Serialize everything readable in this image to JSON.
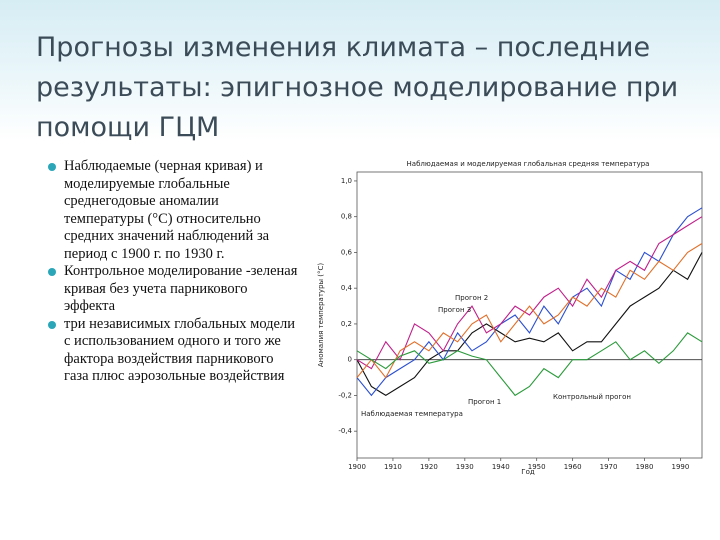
{
  "slide": {
    "title": "Прогнозы изменения климата – последние результаты: эпигнозное моделирование при помощи ГЦМ",
    "bullets": [
      "Наблюдаемые (черная кривая) и моделируемые глобальные среднегодовые аномалии температуры (°C) относительно средних значений наблюдений за период с 1900 г. по 1930 г.",
      "Контрольное моделирование -зеленая кривая  без учета парникового эффекта",
      "три независимых глобальных модели с использованием одного и того же фактора воздействия парникового газа плюс аэрозольные воздействия"
    ]
  },
  "chart_data": {
    "type": "line",
    "title": "Наблюдаемая и моделируемая глобальная средняя температура",
    "x_label": "Год",
    "y_label": "Аномалия температуры (°C)",
    "x": [
      1900,
      1904,
      1908,
      1912,
      1916,
      1920,
      1924,
      1928,
      1932,
      1936,
      1940,
      1944,
      1948,
      1952,
      1956,
      1960,
      1964,
      1968,
      1972,
      1976,
      1980,
      1984,
      1988,
      1992,
      1996
    ],
    "series": [
      {
        "name": "Наблюдаемая температура",
        "color": "#111111",
        "values": [
          0.0,
          -0.15,
          -0.2,
          -0.15,
          -0.1,
          0.0,
          0.05,
          0.05,
          0.15,
          0.2,
          0.15,
          0.1,
          0.12,
          0.1,
          0.15,
          0.05,
          0.1,
          0.1,
          0.2,
          0.3,
          0.35,
          0.4,
          0.5,
          0.45,
          0.6
        ]
      },
      {
        "name": "Прогон 1",
        "color": "#2b4fd0",
        "values": [
          -0.1,
          -0.2,
          -0.1,
          -0.05,
          0.0,
          0.1,
          0.0,
          0.15,
          0.05,
          0.1,
          0.2,
          0.25,
          0.15,
          0.3,
          0.2,
          0.35,
          0.4,
          0.3,
          0.5,
          0.45,
          0.6,
          0.55,
          0.7,
          0.8,
          0.85
        ]
      },
      {
        "name": "Прогон 2",
        "color": "#c0208a",
        "values": [
          0.0,
          -0.05,
          0.1,
          0.0,
          0.2,
          0.15,
          0.05,
          0.2,
          0.3,
          0.15,
          0.2,
          0.3,
          0.25,
          0.35,
          0.4,
          0.3,
          0.45,
          0.35,
          0.5,
          0.55,
          0.5,
          0.65,
          0.7,
          0.75,
          0.8
        ]
      },
      {
        "name": "Прогон 3",
        "color": "#e0702a",
        "values": [
          -0.1,
          0.0,
          -0.1,
          0.05,
          0.1,
          0.05,
          0.15,
          0.1,
          0.2,
          0.25,
          0.1,
          0.2,
          0.3,
          0.2,
          0.25,
          0.35,
          0.3,
          0.4,
          0.35,
          0.5,
          0.45,
          0.55,
          0.5,
          0.6,
          0.65
        ]
      },
      {
        "name": "Контрольный прогон",
        "color": "#2a9a3a",
        "values": [
          0.05,
          0.0,
          -0.05,
          0.02,
          0.05,
          -0.02,
          0.0,
          0.05,
          0.02,
          0.0,
          -0.1,
          -0.2,
          -0.15,
          -0.05,
          -0.1,
          0.0,
          0.0,
          0.05,
          0.1,
          0.0,
          0.05,
          -0.02,
          0.05,
          0.15,
          0.1
        ]
      }
    ],
    "xlim": [
      1900,
      1996
    ],
    "xticks": [
      1900,
      1910,
      1920,
      1930,
      1940,
      1950,
      1960,
      1970,
      1980,
      1990
    ],
    "ylim": [
      -0.55,
      1.05
    ],
    "yticks": [
      {
        "value": -0.4,
        "label": "-0,4"
      },
      {
        "value": -0.2,
        "label": "-0,2"
      },
      0,
      {
        "value": 0.2,
        "label": "0,2"
      },
      {
        "value": 0.4,
        "label": "0,4"
      },
      {
        "value": 0.6,
        "label": "0,6"
      },
      {
        "value": 0.8,
        "label": "0,8"
      },
      {
        "value": 1.0,
        "label": "1,0"
      }
    ]
  }
}
